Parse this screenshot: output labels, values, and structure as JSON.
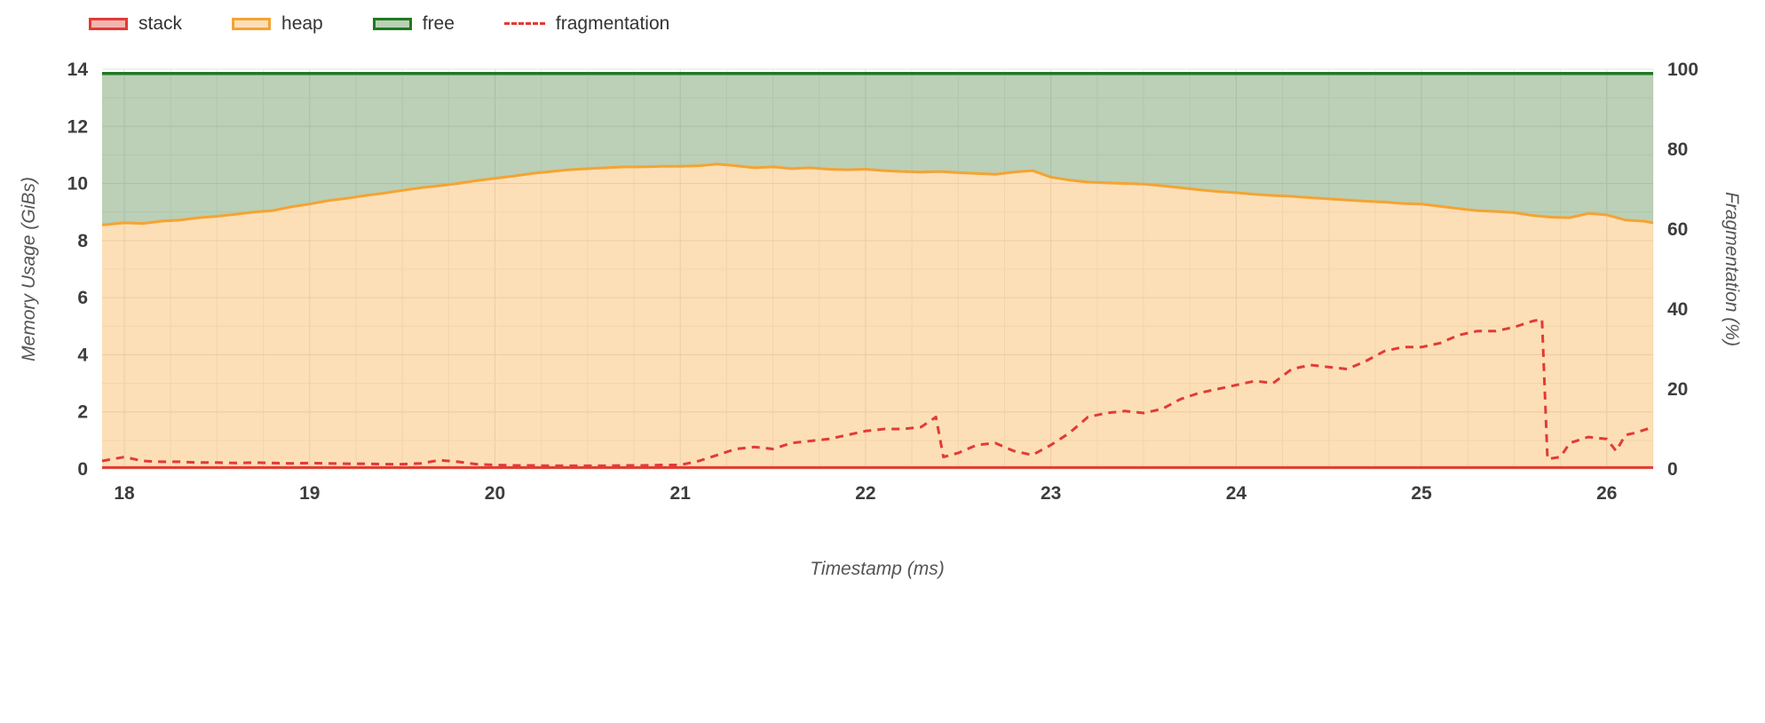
{
  "legend": {
    "items": [
      {
        "label": "stack",
        "type": "box",
        "stroke": "#e23b35",
        "fill": "#f3b5af"
      },
      {
        "label": "heap",
        "type": "box",
        "stroke": "#f5a332",
        "fill": "#fbdeb7"
      },
      {
        "label": "free",
        "type": "box",
        "stroke": "#1f7a1f",
        "fill": "#bad0b7"
      },
      {
        "label": "fragmentation",
        "type": "dashed-line",
        "stroke": "#e23b35",
        "fill": "none"
      }
    ]
  },
  "axes": {
    "x": {
      "title": "Timestamp (ms)",
      "ticks": [
        18,
        19,
        20,
        21,
        22,
        23,
        24,
        25,
        26
      ],
      "min": 17.88,
      "max": 26.25,
      "minor_step": 0.25
    },
    "y_left": {
      "title": "Memory Usage (GiBs)",
      "ticks": [
        0,
        2,
        4,
        6,
        8,
        10,
        12,
        14
      ],
      "min": 0,
      "max": 14,
      "minor_step": 1
    },
    "y_right": {
      "title": "Fragmentation (%)",
      "ticks": [
        0,
        20,
        40,
        60,
        80,
        100
      ],
      "min": 0,
      "max": 100
    }
  },
  "colors": {
    "grid_major": "#e2e2e2",
    "grid_minor": "#efefef",
    "tick_label": "#3d3d3d",
    "axis_title": "#555555"
  },
  "chart_data": {
    "type": "area",
    "title": "",
    "xlabel": "Timestamp (ms)",
    "ylabel_left": "Memory Usage (GiBs)",
    "ylabel_right": "Fragmentation (%)",
    "xlim": [
      17.88,
      26.25
    ],
    "ylim_left": [
      0,
      14
    ],
    "ylim_right": [
      0,
      100
    ],
    "grid": true,
    "legend_position": "top-left",
    "series": [
      {
        "name": "free",
        "axis": "left",
        "style": "band-above-heap",
        "color": "#1f7a1f",
        "fill": "rgba(84,138,75,0.40)",
        "points": [
          [
            17.88,
            13.85
          ],
          [
            26.25,
            13.85
          ]
        ]
      },
      {
        "name": "heap",
        "axis": "left",
        "style": "area",
        "color": "#f5a332",
        "fill": "rgba(245,163,50,0.35)",
        "points": [
          [
            17.88,
            8.55
          ],
          [
            18.0,
            8.62
          ],
          [
            18.1,
            8.6
          ],
          [
            18.2,
            8.68
          ],
          [
            18.3,
            8.72
          ],
          [
            18.4,
            8.8
          ],
          [
            18.5,
            8.85
          ],
          [
            18.6,
            8.92
          ],
          [
            18.7,
            9.0
          ],
          [
            18.8,
            9.05
          ],
          [
            18.9,
            9.18
          ],
          [
            19.0,
            9.28
          ],
          [
            19.1,
            9.4
          ],
          [
            19.2,
            9.48
          ],
          [
            19.3,
            9.58
          ],
          [
            19.4,
            9.66
          ],
          [
            19.5,
            9.76
          ],
          [
            19.6,
            9.85
          ],
          [
            19.7,
            9.92
          ],
          [
            19.8,
            10.0
          ],
          [
            19.9,
            10.1
          ],
          [
            20.0,
            10.18
          ],
          [
            20.1,
            10.26
          ],
          [
            20.2,
            10.35
          ],
          [
            20.3,
            10.42
          ],
          [
            20.4,
            10.48
          ],
          [
            20.5,
            10.52
          ],
          [
            20.6,
            10.55
          ],
          [
            20.7,
            10.58
          ],
          [
            20.8,
            10.58
          ],
          [
            20.9,
            10.6
          ],
          [
            21.0,
            10.6
          ],
          [
            21.1,
            10.62
          ],
          [
            21.2,
            10.68
          ],
          [
            21.3,
            10.62
          ],
          [
            21.4,
            10.55
          ],
          [
            21.5,
            10.58
          ],
          [
            21.6,
            10.52
          ],
          [
            21.7,
            10.55
          ],
          [
            21.8,
            10.5
          ],
          [
            21.9,
            10.48
          ],
          [
            22.0,
            10.5
          ],
          [
            22.1,
            10.45
          ],
          [
            22.2,
            10.42
          ],
          [
            22.3,
            10.4
          ],
          [
            22.4,
            10.42
          ],
          [
            22.5,
            10.38
          ],
          [
            22.6,
            10.35
          ],
          [
            22.7,
            10.32
          ],
          [
            22.8,
            10.4
          ],
          [
            22.9,
            10.45
          ],
          [
            23.0,
            10.22
          ],
          [
            23.1,
            10.12
          ],
          [
            23.2,
            10.05
          ],
          [
            23.3,
            10.02
          ],
          [
            23.4,
            10.0
          ],
          [
            23.5,
            9.98
          ],
          [
            23.6,
            9.92
          ],
          [
            23.7,
            9.85
          ],
          [
            23.8,
            9.78
          ],
          [
            23.9,
            9.72
          ],
          [
            24.0,
            9.68
          ],
          [
            24.1,
            9.62
          ],
          [
            24.2,
            9.58
          ],
          [
            24.3,
            9.55
          ],
          [
            24.4,
            9.5
          ],
          [
            24.5,
            9.46
          ],
          [
            24.6,
            9.42
          ],
          [
            24.7,
            9.38
          ],
          [
            24.8,
            9.35
          ],
          [
            24.9,
            9.3
          ],
          [
            25.0,
            9.28
          ],
          [
            25.1,
            9.2
          ],
          [
            25.2,
            9.12
          ],
          [
            25.3,
            9.05
          ],
          [
            25.4,
            9.02
          ],
          [
            25.5,
            8.98
          ],
          [
            25.6,
            8.88
          ],
          [
            25.7,
            8.82
          ],
          [
            25.8,
            8.8
          ],
          [
            25.9,
            8.95
          ],
          [
            26.0,
            8.9
          ],
          [
            26.1,
            8.72
          ],
          [
            26.2,
            8.68
          ],
          [
            26.25,
            8.62
          ]
        ]
      },
      {
        "name": "stack",
        "axis": "left",
        "style": "line",
        "color": "#e23b35",
        "fill": "none",
        "points": [
          [
            17.88,
            0.05
          ],
          [
            26.25,
            0.05
          ]
        ]
      },
      {
        "name": "fragmentation",
        "axis": "right",
        "style": "dashed-line",
        "color": "#e23b35",
        "fill": "none",
        "points": [
          [
            17.88,
            2.0
          ],
          [
            18.0,
            3.0
          ],
          [
            18.1,
            2.0
          ],
          [
            18.2,
            1.8
          ],
          [
            18.3,
            1.8
          ],
          [
            18.4,
            1.6
          ],
          [
            18.5,
            1.6
          ],
          [
            18.6,
            1.5
          ],
          [
            18.7,
            1.6
          ],
          [
            18.8,
            1.5
          ],
          [
            18.9,
            1.4
          ],
          [
            19.0,
            1.5
          ],
          [
            19.1,
            1.4
          ],
          [
            19.2,
            1.3
          ],
          [
            19.3,
            1.3
          ],
          [
            19.4,
            1.2
          ],
          [
            19.5,
            1.2
          ],
          [
            19.6,
            1.4
          ],
          [
            19.7,
            2.2
          ],
          [
            19.8,
            1.8
          ],
          [
            19.9,
            1.2
          ],
          [
            20.0,
            1.0
          ],
          [
            20.1,
            0.9
          ],
          [
            20.2,
            0.9
          ],
          [
            20.3,
            0.8
          ],
          [
            20.4,
            0.8
          ],
          [
            20.5,
            0.8
          ],
          [
            20.6,
            0.8
          ],
          [
            20.7,
            0.9
          ],
          [
            20.8,
            0.9
          ],
          [
            20.9,
            1.0
          ],
          [
            21.0,
            1.0
          ],
          [
            21.1,
            2.0
          ],
          [
            21.2,
            3.5
          ],
          [
            21.3,
            5.0
          ],
          [
            21.4,
            5.5
          ],
          [
            21.5,
            5.0
          ],
          [
            21.6,
            6.5
          ],
          [
            21.7,
            7.0
          ],
          [
            21.8,
            7.5
          ],
          [
            21.9,
            8.5
          ],
          [
            22.0,
            9.5
          ],
          [
            22.1,
            10.0
          ],
          [
            22.2,
            10.0
          ],
          [
            22.3,
            10.5
          ],
          [
            22.38,
            13.0
          ],
          [
            22.42,
            3.0
          ],
          [
            22.5,
            4.0
          ],
          [
            22.6,
            6.0
          ],
          [
            22.7,
            6.5
          ],
          [
            22.8,
            4.5
          ],
          [
            22.9,
            3.5
          ],
          [
            23.0,
            6.0
          ],
          [
            23.1,
            9.0
          ],
          [
            23.2,
            13.0
          ],
          [
            23.3,
            14.0
          ],
          [
            23.4,
            14.5
          ],
          [
            23.5,
            14.0
          ],
          [
            23.6,
            15.0
          ],
          [
            23.7,
            17.5
          ],
          [
            23.8,
            19.0
          ],
          [
            23.9,
            20.0
          ],
          [
            24.0,
            21.0
          ],
          [
            24.1,
            22.0
          ],
          [
            24.2,
            21.5
          ],
          [
            24.3,
            25.0
          ],
          [
            24.4,
            26.0
          ],
          [
            24.5,
            25.5
          ],
          [
            24.6,
            25.0
          ],
          [
            24.7,
            27.0
          ],
          [
            24.8,
            29.5
          ],
          [
            24.9,
            30.5
          ],
          [
            25.0,
            30.5
          ],
          [
            25.1,
            31.5
          ],
          [
            25.2,
            33.5
          ],
          [
            25.3,
            34.5
          ],
          [
            25.4,
            34.5
          ],
          [
            25.5,
            35.5
          ],
          [
            25.6,
            37.0
          ],
          [
            25.65,
            37.5
          ],
          [
            25.68,
            2.5
          ],
          [
            25.75,
            3.0
          ],
          [
            25.8,
            6.5
          ],
          [
            25.9,
            8.0
          ],
          [
            26.0,
            7.5
          ],
          [
            26.05,
            4.5
          ],
          [
            26.1,
            8.5
          ],
          [
            26.15,
            9.0
          ],
          [
            26.25,
            10.5
          ]
        ]
      }
    ]
  }
}
